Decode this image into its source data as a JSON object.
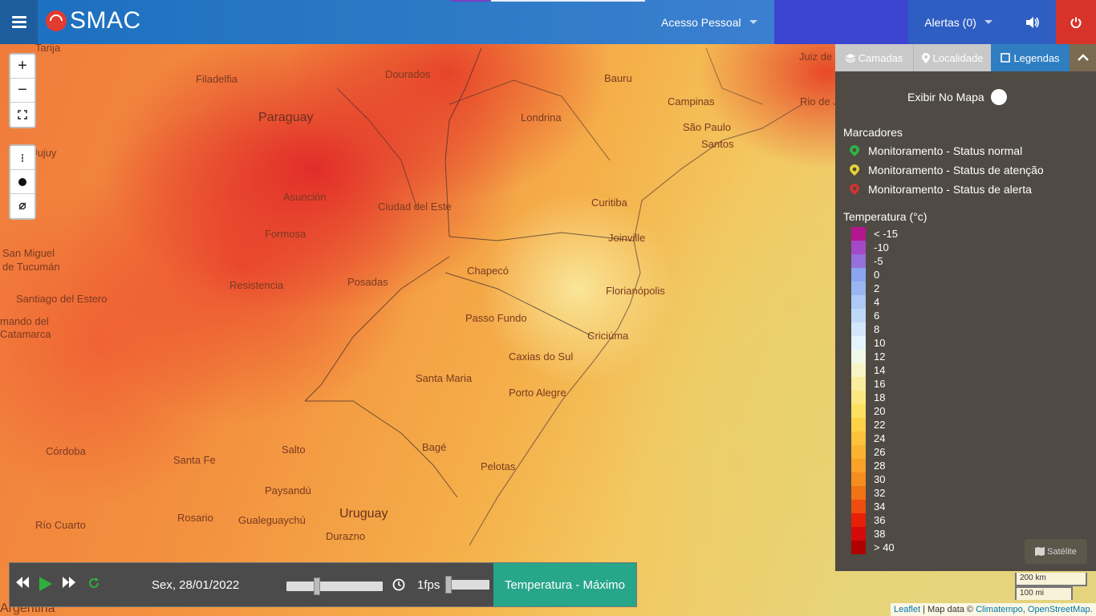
{
  "header": {
    "logo_text": "SMAC",
    "acesso_label": "Acesso Pessoal",
    "alertas_label": "Alertas (0)"
  },
  "map": {
    "cities": [
      {
        "name": "Tarija"
      },
      {
        "name": "Filadelfia"
      },
      {
        "name": "Dourados"
      },
      {
        "name": "Bauru"
      },
      {
        "name": "Juiz de"
      },
      {
        "name": "Campinas"
      },
      {
        "name": "Rio de Janeiro"
      },
      {
        "name": "Londrina"
      },
      {
        "name": "São Paulo"
      },
      {
        "name": "Santos"
      },
      {
        "name": "de Jujuy"
      },
      {
        "name": "Asunción"
      },
      {
        "name": "Ciudad del Este"
      },
      {
        "name": "Curitiba"
      },
      {
        "name": "Formosa"
      },
      {
        "name": "Joinville"
      },
      {
        "name": "San Miguel"
      },
      {
        "name": "de Tucumán"
      },
      {
        "name": "Chapecó"
      },
      {
        "name": "Resistencia"
      },
      {
        "name": "Posadas"
      },
      {
        "name": "Florianópolis"
      },
      {
        "name": "Santiago del Estero"
      },
      {
        "name": "mando del"
      },
      {
        "name": "Catamarca"
      },
      {
        "name": "Passo Fundo"
      },
      {
        "name": "Criciúma"
      },
      {
        "name": "Caxias do Sul"
      },
      {
        "name": "Santa Maria"
      },
      {
        "name": "Porto Alegre"
      },
      {
        "name": "Córdoba"
      },
      {
        "name": "Santa Fe"
      },
      {
        "name": "Salto"
      },
      {
        "name": "Bagé"
      },
      {
        "name": "Pelotas"
      },
      {
        "name": "Paysandú"
      },
      {
        "name": "Rosario"
      },
      {
        "name": "Gualeguaychú"
      },
      {
        "name": "Río Cuarto"
      },
      {
        "name": "Durazno"
      },
      {
        "name": "Argentina"
      }
    ],
    "countries": [
      {
        "name": "Paraguay"
      },
      {
        "name": "Uruguay"
      }
    ]
  },
  "controls": {
    "zoom_in": "+",
    "zoom_out": "−"
  },
  "panel": {
    "tabs": [
      {
        "label": "Camadas",
        "icon": "layers-icon"
      },
      {
        "label": "Localidade",
        "icon": "map-pin-icon"
      },
      {
        "label": "Legendas",
        "icon": "square-icon"
      }
    ],
    "exibir_label": "Exibir No Mapa",
    "marcadores_title": "Marcadores",
    "markers": [
      {
        "label": "Monitoramento - Status normal",
        "color": "#2fb344"
      },
      {
        "label": "Monitoramento - Status de atenção",
        "color": "#e8d531"
      },
      {
        "label": "Monitoramento - Status de alerta",
        "color": "#d63131"
      }
    ],
    "temp_title": "Temperatura (°c)",
    "legend": [
      {
        "label": "< -15",
        "color": "#b2178f"
      },
      {
        "label": "-10",
        "color": "#a349c7"
      },
      {
        "label": "-5",
        "color": "#9670da"
      },
      {
        "label": "0",
        "color": "#8aa6ef"
      },
      {
        "label": "2",
        "color": "#98b7f2"
      },
      {
        "label": "4",
        "color": "#aec9f5"
      },
      {
        "label": "6",
        "color": "#c0d8f8"
      },
      {
        "label": "8",
        "color": "#d3e7fb"
      },
      {
        "label": "10",
        "color": "#e4f4fc"
      },
      {
        "label": "12",
        "color": "#f0f8e8"
      },
      {
        "label": "14",
        "color": "#f7f4c5"
      },
      {
        "label": "16",
        "color": "#f9ee9e"
      },
      {
        "label": "18",
        "color": "#fbe880"
      },
      {
        "label": "20",
        "color": "#fde060"
      },
      {
        "label": "22",
        "color": "#fdd248"
      },
      {
        "label": "24",
        "color": "#fcc23b"
      },
      {
        "label": "26",
        "color": "#fbb231"
      },
      {
        "label": "28",
        "color": "#f9a128"
      },
      {
        "label": "30",
        "color": "#f68d1f"
      },
      {
        "label": "32",
        "color": "#f27216"
      },
      {
        "label": "34",
        "color": "#ee4d0f"
      },
      {
        "label": "36",
        "color": "#e8200a"
      },
      {
        "label": "38",
        "color": "#d40a0a"
      },
      {
        "label": "> 40",
        "color": "#b00000"
      }
    ]
  },
  "player": {
    "date": "Sex, 28/01/2022",
    "fps": "1fps",
    "layer": "Temperatura - Máximo"
  },
  "satelite_label": "Satélite",
  "scale": {
    "km": "200 km",
    "mi": "100 mi"
  },
  "attribution": {
    "leaflet": "Leaflet",
    "sep1": " | Map data © ",
    "climatempo": "Climatempo",
    "sep2": ", ",
    "osm": "OpenStreetMap",
    "end": "."
  }
}
